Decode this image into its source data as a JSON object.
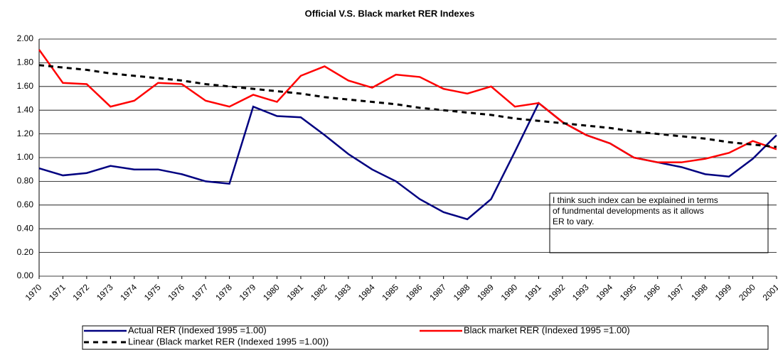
{
  "chart_data": {
    "type": "line",
    "title": "Official V.S. Black market RER Indexes",
    "categories": [
      "1970",
      "1971",
      "1972",
      "1973",
      "1974",
      "1975",
      "1976",
      "1977",
      "1978",
      "1979",
      "1980",
      "1981",
      "1982",
      "1983",
      "1984",
      "1985",
      "1986",
      "1987",
      "1988",
      "1989",
      "1990",
      "1991",
      "1992",
      "1993",
      "1994",
      "1995",
      "1996",
      "1997",
      "1998",
      "1999",
      "2000",
      "2001"
    ],
    "series": [
      {
        "name": "Actual RER (Indexed 1995 =1.00)",
        "color": "#000080",
        "dash": false,
        "values": [
          0.91,
          0.85,
          0.87,
          0.93,
          0.9,
          0.9,
          0.86,
          0.8,
          0.78,
          1.43,
          1.35,
          1.34,
          1.19,
          1.03,
          0.9,
          0.8,
          0.65,
          0.54,
          0.48,
          0.65,
          1.05,
          1.46,
          1.3,
          1.19,
          1.12,
          1.0,
          0.96,
          0.92,
          0.86,
          0.84,
          0.99,
          1.19
        ]
      },
      {
        "name": "Black market RER (Indexed 1995 =1.00)",
        "color": "#ff0000",
        "dash": false,
        "values": [
          1.91,
          1.63,
          1.62,
          1.43,
          1.48,
          1.63,
          1.62,
          1.48,
          1.43,
          1.53,
          1.47,
          1.69,
          1.77,
          1.65,
          1.59,
          1.7,
          1.68,
          1.58,
          1.54,
          1.6,
          1.43,
          1.46,
          1.3,
          1.19,
          1.12,
          1.0,
          0.96,
          0.96,
          0.99,
          1.04,
          1.14,
          1.07
        ]
      },
      {
        "name": "Linear (Black market RER (Indexed 1995 =1.00))",
        "color": "#000000",
        "dash": true,
        "values": [
          1.78,
          1.76,
          1.74,
          1.71,
          1.69,
          1.67,
          1.65,
          1.62,
          1.6,
          1.58,
          1.56,
          1.54,
          1.51,
          1.49,
          1.47,
          1.45,
          1.42,
          1.4,
          1.38,
          1.36,
          1.33,
          1.31,
          1.29,
          1.27,
          1.25,
          1.22,
          1.2,
          1.18,
          1.16,
          1.13,
          1.11,
          1.09
        ]
      }
    ],
    "ylim": [
      0,
      2
    ],
    "yticks": [
      {
        "value": 0,
        "label": "0.00"
      },
      {
        "value": 0.2,
        "label": "0.20"
      },
      {
        "value": 0.4,
        "label": "0.40"
      },
      {
        "value": 0.6,
        "label": "0.60"
      },
      {
        "value": 0.8,
        "label": "0.80"
      },
      {
        "value": 1,
        "label": "1.00"
      },
      {
        "value": 1.2,
        "label": "1.20"
      },
      {
        "value": 1.4,
        "label": "1.40"
      },
      {
        "value": 1.6,
        "label": "1.60"
      },
      {
        "value": 1.8,
        "label": "1.80"
      },
      {
        "value": 2,
        "label": "2.00"
      }
    ],
    "grid": true,
    "legend": "bottom",
    "annotation": [
      "I think such index can be explained in terms",
      "of fundmental developments  as it allows",
      "ER to vary."
    ]
  }
}
